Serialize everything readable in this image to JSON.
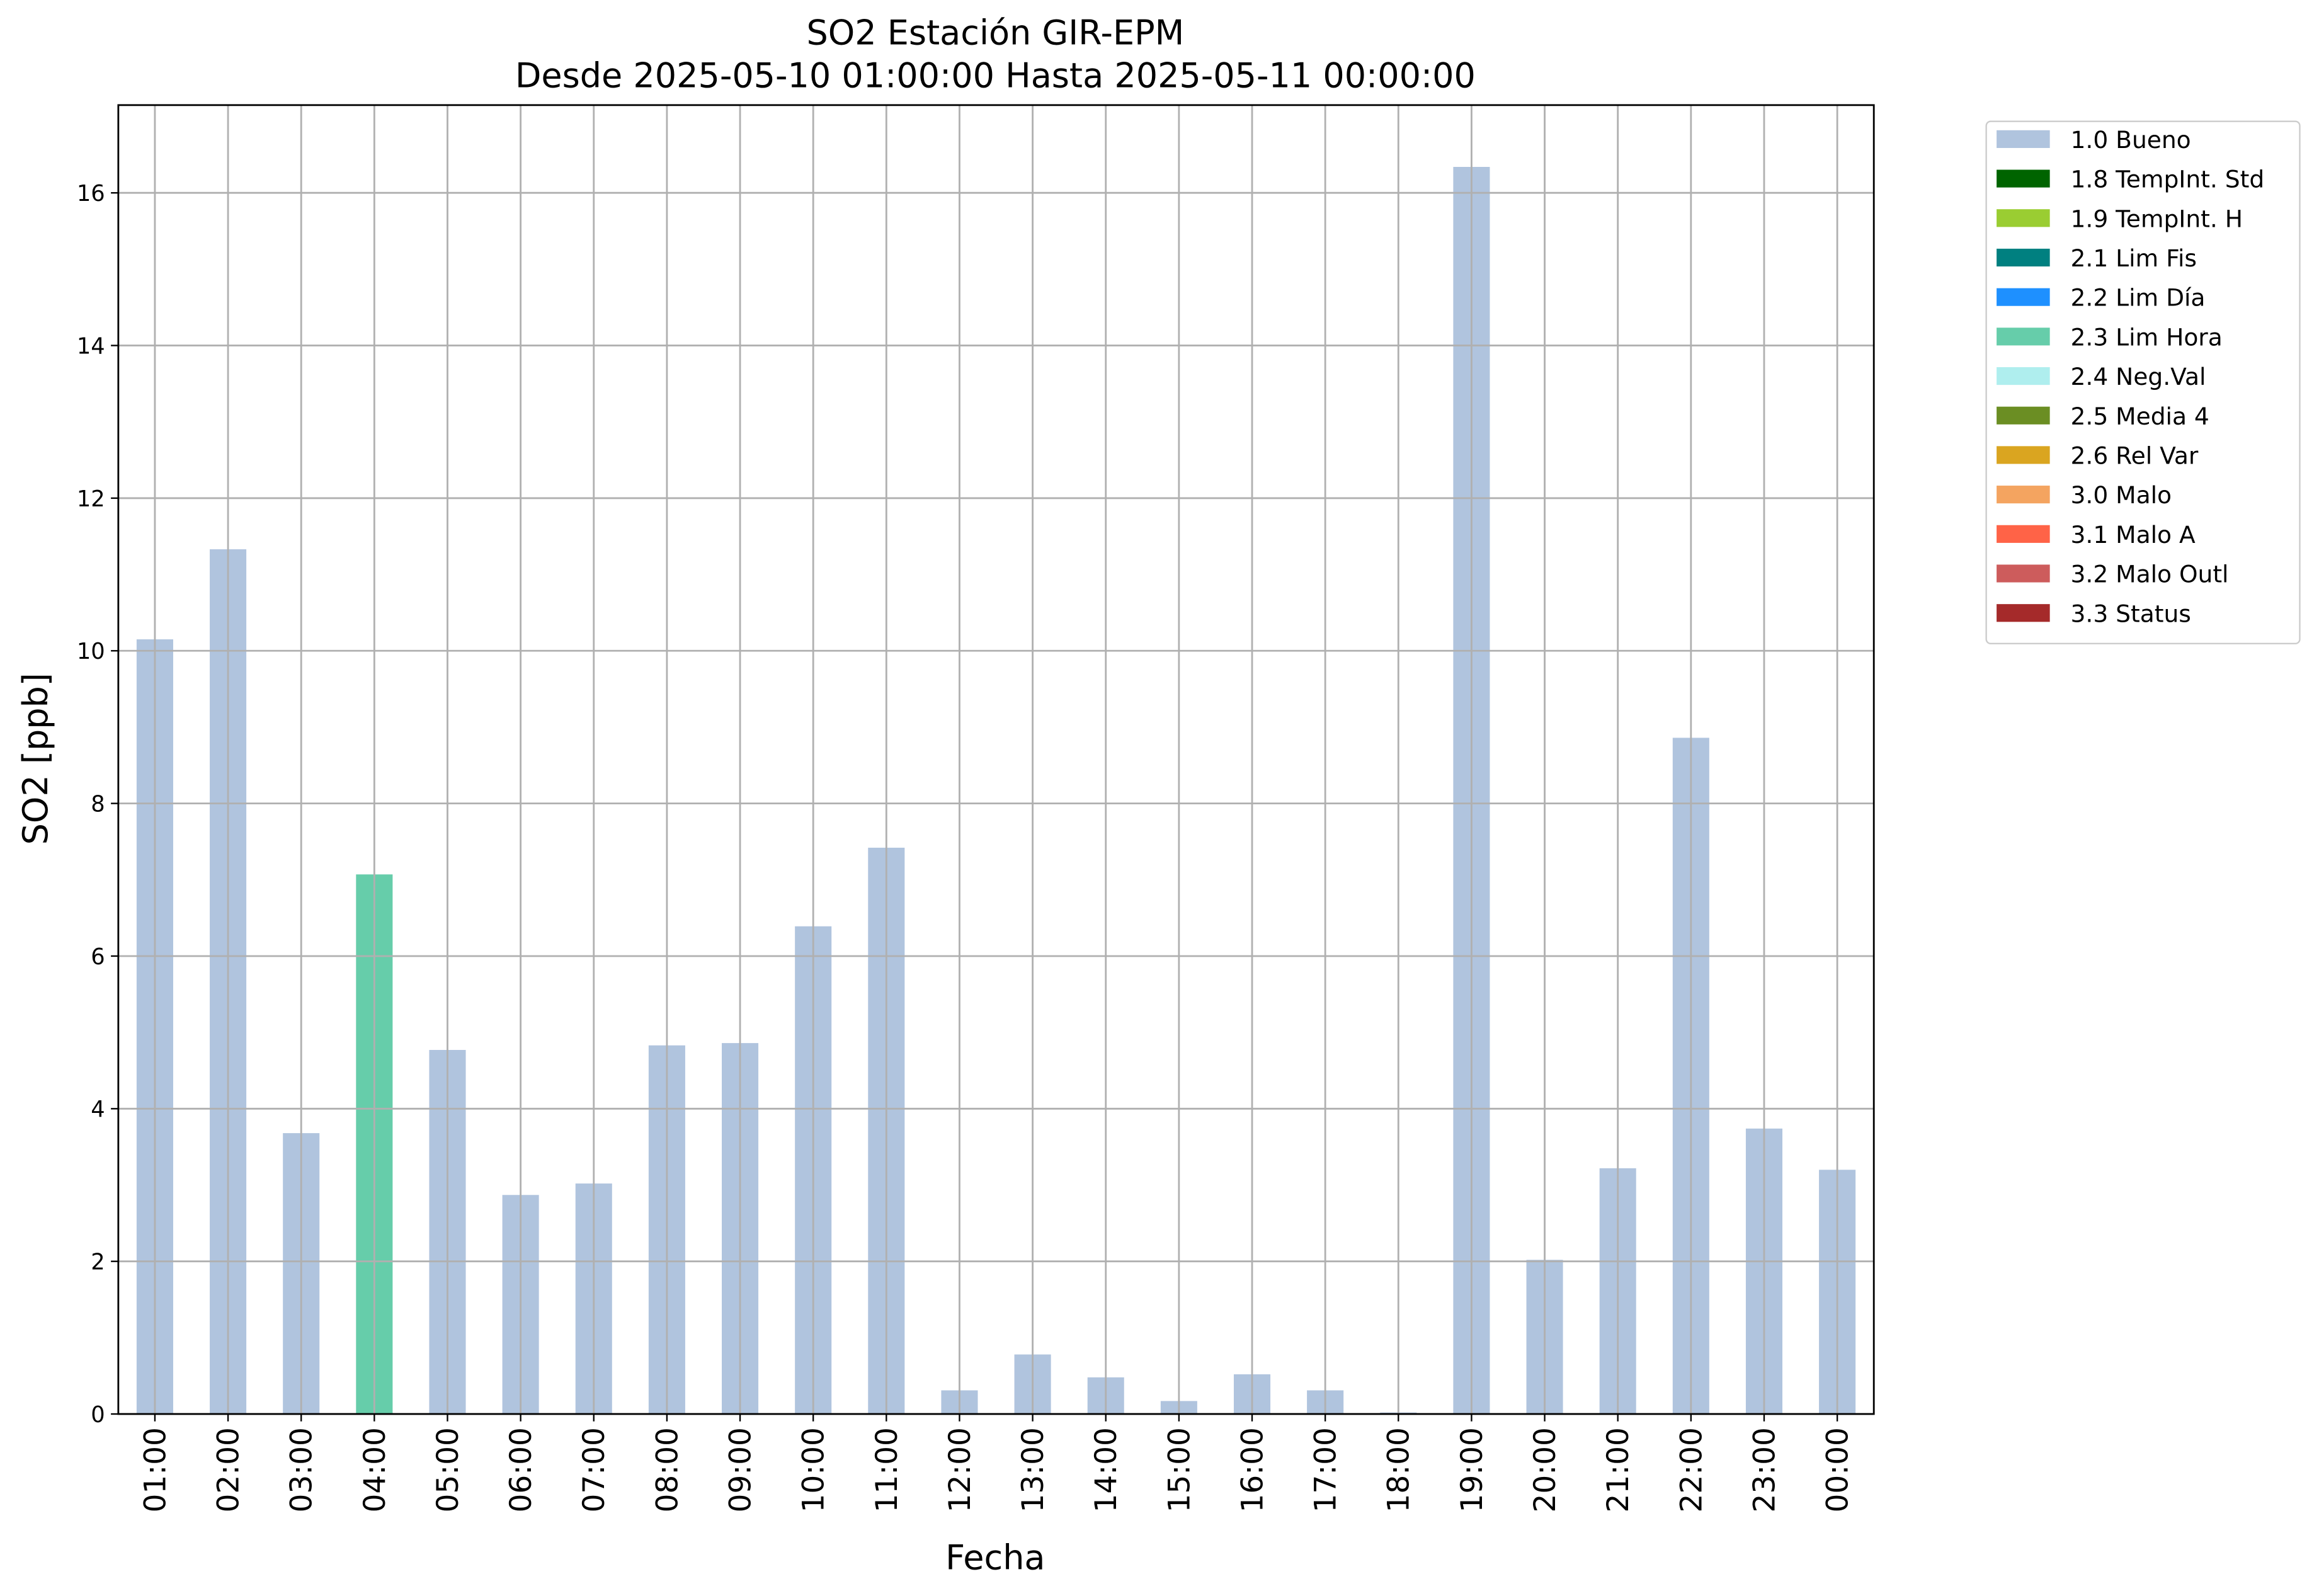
{
  "chart_data": {
    "type": "bar",
    "stacked": true,
    "title": "SO2 Estación GIR-EPM",
    "subtitle": "Desde 2025-05-10 01:00:00 Hasta 2025-05-11 00:00:00",
    "x_label": "Fecha",
    "y_label": "SO2 [ppb]",
    "categories": [
      "01:00",
      "02:00",
      "03:00",
      "04:00",
      "05:00",
      "06:00",
      "07:00",
      "08:00",
      "09:00",
      "10:00",
      "11:00",
      "12:00",
      "13:00",
      "14:00",
      "15:00",
      "16:00",
      "17:00",
      "18:00",
      "19:00",
      "20:00",
      "21:00",
      "22:00",
      "23:00",
      "00:00"
    ],
    "series": [
      {
        "name": "1.0 Bueno",
        "color": "#b0c4de",
        "values": [
          10.15,
          11.33,
          3.68,
          null,
          4.77,
          2.87,
          3.02,
          4.83,
          4.86,
          6.39,
          7.42,
          0.31,
          0.78,
          0.48,
          0.17,
          0.52,
          0.31,
          0.02,
          16.34,
          2.02,
          3.22,
          8.86,
          3.74,
          3.2
        ]
      },
      {
        "name": "1.8 TempInt. Std",
        "color": "#006400",
        "values": [
          null,
          null,
          null,
          null,
          null,
          null,
          null,
          null,
          null,
          null,
          null,
          null,
          null,
          null,
          null,
          null,
          null,
          null,
          null,
          null,
          null,
          null,
          null,
          null
        ]
      },
      {
        "name": "1.9 TempInt. H",
        "color": "#9acd32",
        "values": [
          null,
          null,
          null,
          null,
          null,
          null,
          null,
          null,
          null,
          null,
          null,
          null,
          null,
          null,
          null,
          null,
          null,
          null,
          null,
          null,
          null,
          null,
          null,
          null
        ]
      },
      {
        "name": "2.1 Lim Fis",
        "color": "#008080",
        "values": [
          null,
          null,
          null,
          null,
          null,
          null,
          null,
          null,
          null,
          null,
          null,
          null,
          null,
          null,
          null,
          null,
          null,
          null,
          null,
          null,
          null,
          null,
          null,
          null
        ]
      },
      {
        "name": "2.2 Lim Día",
        "color": "#1e90ff",
        "values": [
          null,
          null,
          null,
          null,
          null,
          null,
          null,
          null,
          null,
          null,
          null,
          null,
          null,
          null,
          null,
          null,
          null,
          null,
          null,
          null,
          null,
          null,
          null,
          null
        ]
      },
      {
        "name": "2.3 Lim Hora",
        "color": "#66cdaa",
        "values": [
          null,
          null,
          null,
          7.07,
          null,
          null,
          null,
          null,
          null,
          null,
          null,
          null,
          null,
          null,
          null,
          null,
          null,
          null,
          null,
          null,
          null,
          null,
          null,
          null
        ]
      },
      {
        "name": "2.4 Neg.Val",
        "color": "#afeeee",
        "values": [
          null,
          null,
          null,
          null,
          null,
          null,
          null,
          null,
          null,
          null,
          null,
          null,
          null,
          null,
          null,
          null,
          null,
          null,
          null,
          null,
          null,
          null,
          null,
          null
        ]
      },
      {
        "name": "2.5 Media 4",
        "color": "#6b8e23",
        "values": [
          null,
          null,
          null,
          null,
          null,
          null,
          null,
          null,
          null,
          null,
          null,
          null,
          null,
          null,
          null,
          null,
          null,
          null,
          null,
          null,
          null,
          null,
          null,
          null
        ]
      },
      {
        "name": "2.6 Rel Var",
        "color": "#daa520",
        "values": [
          null,
          null,
          null,
          null,
          null,
          null,
          null,
          null,
          null,
          null,
          null,
          null,
          null,
          null,
          null,
          null,
          null,
          null,
          null,
          null,
          null,
          null,
          null,
          null
        ]
      },
      {
        "name": "3.0 Malo",
        "color": "#f4a460",
        "values": [
          null,
          null,
          null,
          null,
          null,
          null,
          null,
          null,
          null,
          null,
          null,
          null,
          null,
          null,
          null,
          null,
          null,
          null,
          null,
          null,
          null,
          null,
          null,
          null
        ]
      },
      {
        "name": "3.1 Malo A",
        "color": "#ff6347",
        "values": [
          null,
          null,
          null,
          null,
          null,
          null,
          null,
          null,
          null,
          null,
          null,
          null,
          null,
          null,
          null,
          null,
          null,
          null,
          null,
          null,
          null,
          null,
          null,
          null
        ]
      },
      {
        "name": "3.2 Malo Outl",
        "color": "#cd5c5c",
        "values": [
          null,
          null,
          null,
          null,
          null,
          null,
          null,
          null,
          null,
          null,
          null,
          null,
          null,
          null,
          null,
          null,
          null,
          null,
          null,
          null,
          null,
          null,
          null,
          null
        ]
      },
      {
        "name": "3.3 Status",
        "color": "#a52a2a",
        "values": [
          null,
          null,
          null,
          null,
          null,
          null,
          null,
          null,
          null,
          null,
          null,
          null,
          null,
          null,
          null,
          null,
          null,
          null,
          null,
          null,
          null,
          null,
          null,
          null
        ]
      }
    ],
    "ylim": [
      0,
      17.15
    ],
    "yticks": [
      0,
      2,
      4,
      6,
      8,
      10,
      12,
      14,
      16
    ],
    "grid": true,
    "legend": "outside upper right"
  }
}
